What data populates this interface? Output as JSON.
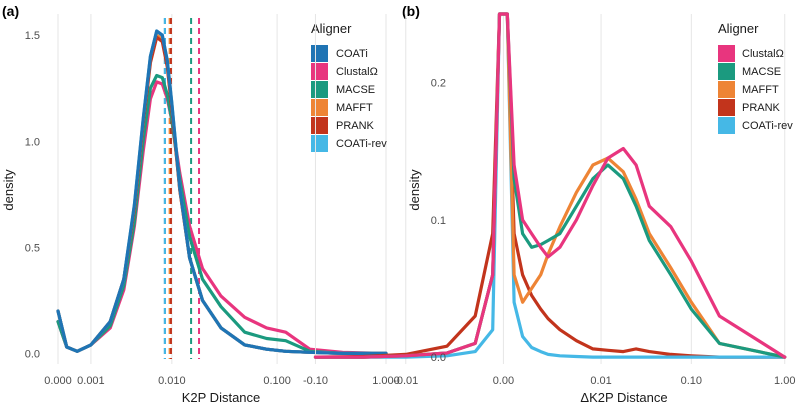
{
  "chart_data": [
    {
      "type": "line",
      "panel_label": "(a)",
      "xlabel": "K2P Distance",
      "ylabel": "density",
      "x_scale": "pseudo-log",
      "x_ticks": [
        0,
        0.001,
        0.01,
        0.1,
        1
      ],
      "x_tick_labels": [
        "0.000",
        "0.001",
        "0.010",
        "0.100",
        "1.000"
      ],
      "y_ticks": [
        0,
        0.5,
        1.0,
        1.5
      ],
      "y_tick_labels": [
        "0.0",
        "0.5",
        "1.0",
        "1.5"
      ],
      "ylim": [
        -0.05,
        1.6
      ],
      "legend_title": "Aligner",
      "legend_position": "top-right",
      "series": [
        {
          "name": "COATi",
          "color": "#1f74b4",
          "x": [
            0,
            0.0002,
            0.0005,
            0.001,
            0.002,
            0.003,
            0.004,
            0.005,
            0.006,
            0.007,
            0.008,
            0.009,
            0.01,
            0.012,
            0.015,
            0.02,
            0.03,
            0.05,
            0.08,
            0.12,
            0.2,
            0.4,
            1.0
          ],
          "y": [
            0.2,
            0.03,
            0.01,
            0.04,
            0.15,
            0.35,
            0.7,
            1.1,
            1.4,
            1.52,
            1.5,
            1.38,
            1.18,
            0.78,
            0.45,
            0.25,
            0.12,
            0.04,
            0.02,
            0.01,
            0.005,
            0.0,
            0.0
          ],
          "vline": 0.0085
        },
        {
          "name": "ClustalΩ",
          "color": "#e8357e",
          "x": [
            0,
            0.0002,
            0.0005,
            0.001,
            0.002,
            0.003,
            0.004,
            0.005,
            0.006,
            0.007,
            0.008,
            0.009,
            0.01,
            0.012,
            0.015,
            0.02,
            0.03,
            0.05,
            0.08,
            0.12,
            0.2,
            0.4,
            1.0
          ],
          "y": [
            0.15,
            0.03,
            0.01,
            0.04,
            0.12,
            0.3,
            0.6,
            0.95,
            1.2,
            1.28,
            1.27,
            1.2,
            1.1,
            0.85,
            0.6,
            0.4,
            0.27,
            0.17,
            0.12,
            0.1,
            0.02,
            0.005,
            0.0
          ],
          "vline": 0.0185
        },
        {
          "name": "MACSE",
          "color": "#1b9a7f",
          "x": [
            0,
            0.0002,
            0.0005,
            0.001,
            0.002,
            0.003,
            0.004,
            0.005,
            0.006,
            0.007,
            0.008,
            0.009,
            0.01,
            0.012,
            0.015,
            0.02,
            0.03,
            0.05,
            0.08,
            0.12,
            0.2,
            0.4,
            1.0
          ],
          "y": [
            0.15,
            0.03,
            0.01,
            0.04,
            0.13,
            0.32,
            0.62,
            1.0,
            1.25,
            1.31,
            1.3,
            1.22,
            1.1,
            0.82,
            0.55,
            0.35,
            0.22,
            0.1,
            0.07,
            0.06,
            0.01,
            0.0,
            0.0
          ],
          "vline": 0.0155
        },
        {
          "name": "MAFFT",
          "color": "#ee8435",
          "x": [
            0,
            0.0002,
            0.0005,
            0.001,
            0.002,
            0.003,
            0.004,
            0.005,
            0.006,
            0.007,
            0.008,
            0.009,
            0.01,
            0.012,
            0.015,
            0.02,
            0.03,
            0.05,
            0.08,
            0.12,
            0.2,
            0.4,
            1.0
          ],
          "y": [
            0.2,
            0.03,
            0.01,
            0.04,
            0.15,
            0.35,
            0.68,
            1.08,
            1.38,
            1.5,
            1.48,
            1.36,
            1.16,
            0.77,
            0.45,
            0.25,
            0.12,
            0.04,
            0.02,
            0.01,
            0.005,
            0.0,
            0.0
          ],
          "vline": 0.0095
        },
        {
          "name": "PRANK",
          "color": "#c2341c",
          "x": [
            0,
            0.0002,
            0.0005,
            0.001,
            0.002,
            0.003,
            0.004,
            0.005,
            0.006,
            0.007,
            0.008,
            0.009,
            0.01,
            0.012,
            0.015,
            0.02,
            0.03,
            0.05,
            0.08,
            0.12,
            0.2,
            0.4,
            1.0
          ],
          "y": [
            0.2,
            0.03,
            0.01,
            0.04,
            0.15,
            0.35,
            0.68,
            1.08,
            1.37,
            1.49,
            1.47,
            1.35,
            1.15,
            0.77,
            0.45,
            0.25,
            0.12,
            0.04,
            0.02,
            0.01,
            0.005,
            0.0,
            0.0
          ],
          "vline": 0.0098
        },
        {
          "name": "COATi-rev",
          "color": "#45b8e6",
          "x": [
            0,
            0.0002,
            0.0005,
            0.001,
            0.002,
            0.003,
            0.004,
            0.005,
            0.006,
            0.007,
            0.008,
            0.009,
            0.01,
            0.012,
            0.015,
            0.02,
            0.03,
            0.05,
            0.08,
            0.12,
            0.2,
            0.4,
            1.0
          ],
          "y": [
            0.2,
            0.03,
            0.01,
            0.04,
            0.15,
            0.35,
            0.7,
            1.1,
            1.4,
            1.52,
            1.5,
            1.38,
            1.18,
            0.78,
            0.45,
            0.25,
            0.12,
            0.04,
            0.02,
            0.01,
            0.005,
            0.0,
            0.0
          ],
          "vline": 0.0085
        }
      ]
    },
    {
      "type": "line",
      "panel_label": "(b)",
      "xlabel": "ΔK2P Distance",
      "ylabel": "density",
      "x_scale": "pseudo-log-symmetric",
      "x_ticks": [
        -0.1,
        -0.01,
        0,
        0.01,
        0.1,
        1
      ],
      "x_tick_labels": [
        "-0.10",
        "-0.01",
        "0.00",
        "0.01",
        "0.10",
        "1.00"
      ],
      "y_ticks": [
        0,
        0.1,
        0.2
      ],
      "y_tick_labels": [
        "0.0",
        "0.1",
        "0.2"
      ],
      "ylim": [
        -0.005,
        0.25
      ],
      "legend_title": "Aligner",
      "legend_position": "top-right",
      "series": [
        {
          "name": "ClustalΩ",
          "color": "#e8357e",
          "x": [
            -0.1,
            -0.03,
            -0.01,
            -0.003,
            -0.001,
            -0.0003,
            -0.0001,
            0.0,
            0.0001,
            0.0003,
            0.0006,
            0.001,
            0.0015,
            0.002,
            0.003,
            0.005,
            0.008,
            0.012,
            0.018,
            0.025,
            0.035,
            0.06,
            0.1,
            0.2,
            1.0
          ],
          "y": [
            0.0,
            0.0,
            0.001,
            0.003,
            0.01,
            0.06,
            0.25,
            0.25,
            0.25,
            0.14,
            0.1,
            0.09,
            0.08,
            0.073,
            0.08,
            0.1,
            0.125,
            0.145,
            0.152,
            0.14,
            0.11,
            0.095,
            0.07,
            0.03,
            0.0
          ]
        },
        {
          "name": "MACSE",
          "color": "#1b9a7f",
          "x": [
            -0.1,
            -0.03,
            -0.01,
            -0.003,
            -0.001,
            -0.0003,
            -0.0001,
            0.0,
            0.0001,
            0.0003,
            0.0006,
            0.001,
            0.0015,
            0.002,
            0.003,
            0.005,
            0.008,
            0.012,
            0.018,
            0.025,
            0.035,
            0.06,
            0.1,
            0.2,
            1.0
          ],
          "y": [
            0.0,
            0.0,
            0.001,
            0.003,
            0.01,
            0.06,
            0.25,
            0.25,
            0.25,
            0.13,
            0.09,
            0.08,
            0.082,
            0.085,
            0.09,
            0.11,
            0.13,
            0.14,
            0.13,
            0.11,
            0.085,
            0.06,
            0.035,
            0.01,
            0.0
          ]
        },
        {
          "name": "MAFFT",
          "color": "#ee8435",
          "x": [
            -0.1,
            -0.03,
            -0.01,
            -0.003,
            -0.001,
            -0.0003,
            -0.0001,
            0.0,
            0.0001,
            0.0003,
            0.0006,
            0.001,
            0.0015,
            0.002,
            0.003,
            0.005,
            0.008,
            0.012,
            0.018,
            0.025,
            0.035,
            0.06,
            0.1,
            0.2,
            1.0
          ],
          "y": [
            0.0,
            0.0,
            0.001,
            0.003,
            0.01,
            0.06,
            0.25,
            0.25,
            0.25,
            0.06,
            0.04,
            0.05,
            0.06,
            0.075,
            0.095,
            0.12,
            0.14,
            0.145,
            0.135,
            0.115,
            0.09,
            0.065,
            0.04,
            0.01,
            0.0
          ]
        },
        {
          "name": "PRANK",
          "color": "#c2341c",
          "x": [
            -0.1,
            -0.03,
            -0.01,
            -0.003,
            -0.001,
            -0.0003,
            -0.0001,
            0.0,
            0.0001,
            0.0003,
            0.0006,
            0.001,
            0.0015,
            0.002,
            0.003,
            0.005,
            0.008,
            0.012,
            0.018,
            0.025,
            0.035,
            0.06,
            0.1,
            0.2,
            1.0
          ],
          "y": [
            0.0,
            0.0005,
            0.002,
            0.008,
            0.03,
            0.09,
            0.25,
            0.25,
            0.25,
            0.09,
            0.06,
            0.045,
            0.035,
            0.028,
            0.02,
            0.012,
            0.006,
            0.005,
            0.004,
            0.006,
            0.004,
            0.002,
            0.001,
            0.0,
            0.0
          ]
        },
        {
          "name": "COATi-rev",
          "color": "#45b8e6",
          "x": [
            -0.1,
            -0.03,
            -0.01,
            -0.003,
            -0.001,
            -0.0003,
            -0.0001,
            0.0,
            0.0001,
            0.0003,
            0.0006,
            0.001,
            0.0015,
            0.002,
            0.003,
            0.005,
            0.008,
            0.012,
            0.018,
            0.025,
            0.035,
            0.06,
            0.1,
            0.2,
            1.0
          ],
          "y": [
            0.0,
            0.0,
            0.0,
            0.001,
            0.004,
            0.02,
            0.25,
            0.25,
            0.25,
            0.04,
            0.015,
            0.007,
            0.004,
            0.002,
            0.001,
            0.0005,
            0.0,
            0.0,
            0.0,
            0.0,
            0.0,
            0.0,
            0.0,
            0.0,
            0.0
          ]
        }
      ]
    }
  ]
}
